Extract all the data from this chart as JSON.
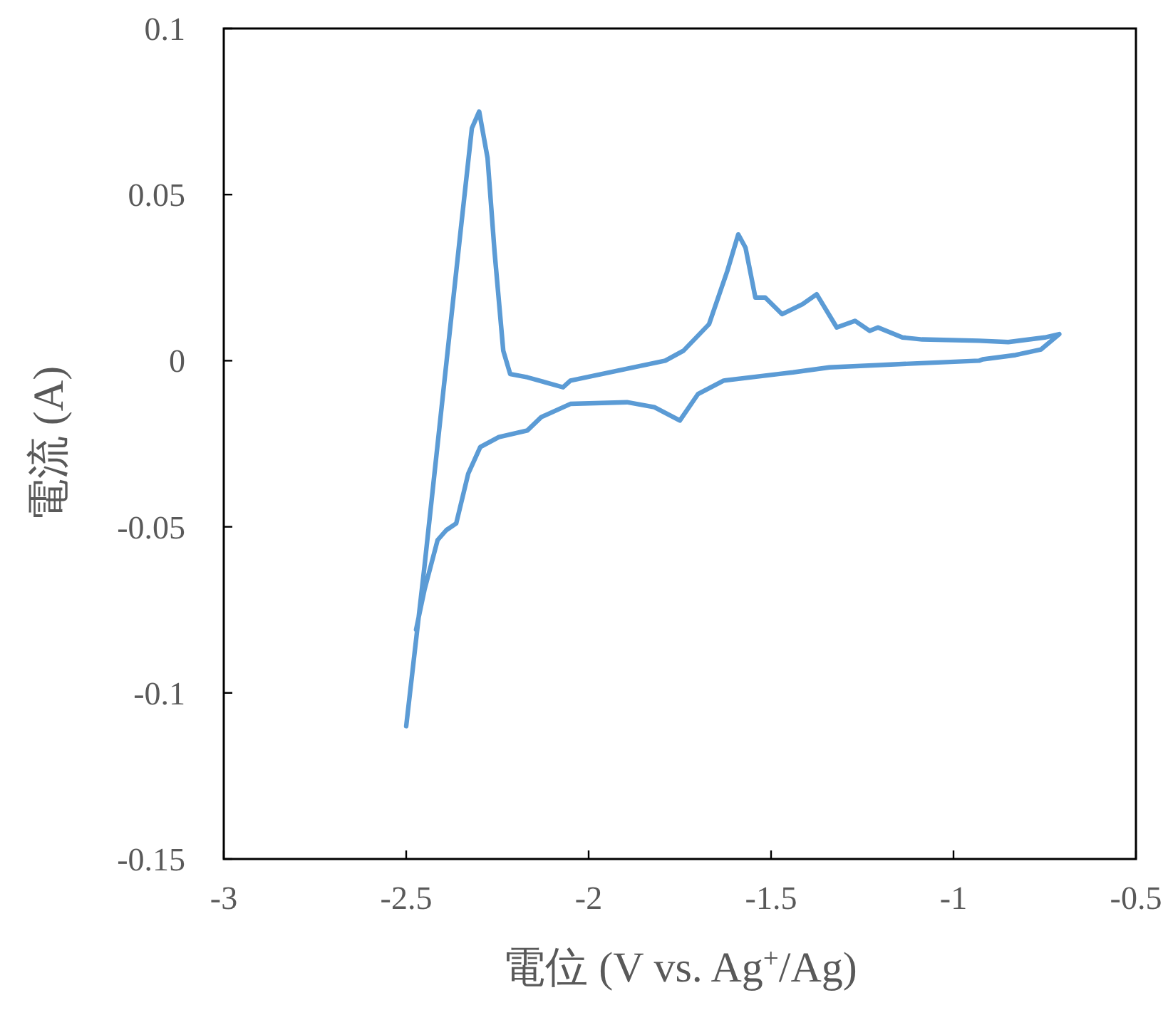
{
  "chart_data": {
    "type": "line",
    "xlabel": "電位 (V vs. Ag$^{+}$/Ag)",
    "ylabel": "電流 (A)",
    "series": [
      {
        "color": "#5b9bd5",
        "x": [
          -2.5,
          -2.45,
          -2.4,
          -2.35,
          -2.32,
          -2.3,
          -2.277,
          -2.258,
          -2.234,
          -2.215,
          -2.168,
          -2.07,
          -2.05,
          -1.92,
          -1.79,
          -1.74,
          -1.67,
          -1.62,
          -1.59,
          -1.57,
          -1.543,
          -1.516,
          -1.47,
          -1.414,
          -1.375,
          -1.32,
          -1.27,
          -1.23,
          -1.207,
          -1.14,
          -1.086,
          -0.93,
          -0.85,
          -0.75,
          -0.71,
          -0.76,
          -0.83,
          -0.92,
          -0.93,
          -1.14,
          -1.34,
          -1.44,
          -1.48,
          -1.63,
          -1.7,
          -1.75,
          -1.82,
          -1.895,
          -2.05,
          -2.13,
          -2.168,
          -2.246,
          -2.297,
          -2.33,
          -2.363,
          -2.39,
          -2.414,
          -2.45,
          -2.473
        ],
        "values": [
          -0.11,
          -0.062,
          -0.011,
          0.04,
          0.07,
          0.075,
          0.061,
          0.033,
          0.003,
          -0.004,
          -0.005,
          -0.008,
          -0.006,
          -0.003,
          0.0,
          0.003,
          0.011,
          0.027,
          0.038,
          0.034,
          0.019,
          0.019,
          0.014,
          0.017,
          0.02,
          0.01,
          0.012,
          0.009,
          0.01,
          0.007,
          0.0064,
          0.006,
          0.0056,
          0.007,
          0.008,
          0.0034,
          0.0017,
          0.0004,
          0.0,
          -0.001,
          -0.002,
          -0.0035,
          -0.004,
          -0.006,
          -0.01,
          -0.018,
          -0.014,
          -0.0125,
          -0.013,
          -0.017,
          -0.021,
          -0.023,
          -0.026,
          -0.034,
          -0.049,
          -0.051,
          -0.054,
          -0.069,
          -0.081
        ]
      }
    ],
    "xlim": [
      -3,
      -0.5
    ],
    "ylim": [
      -0.15,
      0.1
    ],
    "xticks": [
      -3,
      -2.5,
      -2,
      -1.5,
      -1,
      -0.5
    ],
    "yticks": [
      -0.15,
      -0.1,
      -0.05,
      0,
      0.05,
      0.1
    ],
    "marker": "none",
    "line_style": "solid"
  }
}
